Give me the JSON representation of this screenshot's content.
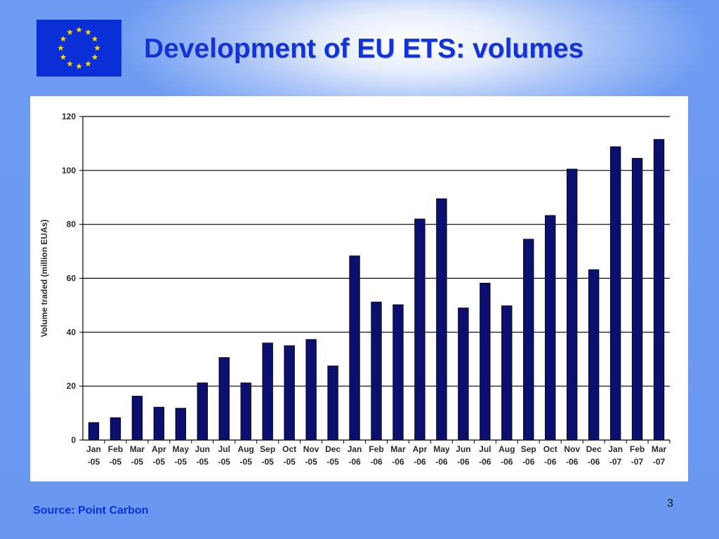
{
  "slide": {
    "title": "Development of EU ETS: volumes",
    "source": "Source: Point Carbon",
    "page_number": "3"
  },
  "colors": {
    "bar_fill": "#0b0f6e",
    "title": "#1433d6",
    "source": "#0a2ee0",
    "flag_blue": "#0a2fd6",
    "flag_star": "#ffd700"
  },
  "icons": {
    "flag": "eu-flag-icon"
  },
  "chart_data": {
    "type": "bar",
    "title": "",
    "xlabel": "",
    "ylabel": "Volume traded (million EUAs)",
    "ylim": [
      0,
      120
    ],
    "yticks": [
      0,
      20,
      40,
      60,
      80,
      100,
      120
    ],
    "grid": true,
    "categories": [
      [
        "Jan",
        "-05"
      ],
      [
        "Feb",
        "-05"
      ],
      [
        "Mar",
        "-05"
      ],
      [
        "Apr",
        "-05"
      ],
      [
        "May",
        "-05"
      ],
      [
        "Jun",
        "-05"
      ],
      [
        "Jul",
        "-05"
      ],
      [
        "Aug",
        "-05"
      ],
      [
        "Sep",
        "-05"
      ],
      [
        "Oct",
        "-05"
      ],
      [
        "Nov",
        "-05"
      ],
      [
        "Dec",
        "-05"
      ],
      [
        "Jan",
        "-06"
      ],
      [
        "Feb",
        "-06"
      ],
      [
        "Mar",
        "-06"
      ],
      [
        "Apr",
        "-06"
      ],
      [
        "May",
        "-06"
      ],
      [
        "Jun",
        "-06"
      ],
      [
        "Jul",
        "-06"
      ],
      [
        "Aug",
        "-06"
      ],
      [
        "Sep",
        "-06"
      ],
      [
        "Oct",
        "-06"
      ],
      [
        "Nov",
        "-06"
      ],
      [
        "Dec",
        "-06"
      ],
      [
        "Jan",
        "-07"
      ],
      [
        "Feb",
        "-07"
      ],
      [
        "Mar",
        "-07"
      ]
    ],
    "values": [
      6.5,
      8.3,
      16.3,
      12.2,
      11.8,
      21.2,
      30.6,
      21.2,
      36,
      35,
      37.3,
      27.5,
      68.3,
      51.2,
      50.2,
      82,
      89.5,
      49,
      58.2,
      49.8,
      74.5,
      83.3,
      100.5,
      63.2,
      108.8,
      104.5,
      111.5
    ]
  }
}
